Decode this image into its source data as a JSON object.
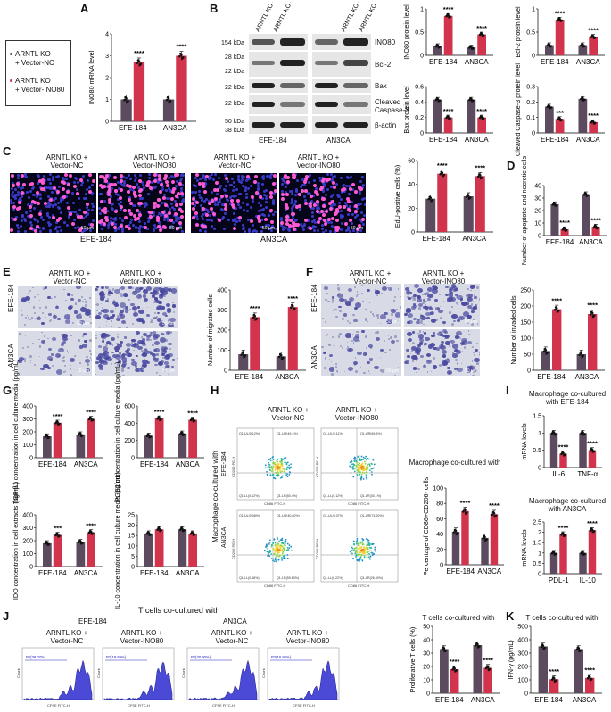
{
  "colors": {
    "nc": "#5c4a5e",
    "ino80": "#d2344e"
  },
  "legend": {
    "nc": "ARNTL KO + Vector-NC",
    "ino80": "ARNTL KO + Vector-INO80",
    "nc_l1": "ARNTL KO",
    "nc_l2": "+ Vector-NC",
    "ino_l1": "ARNTL KO",
    "ino_l2": "+ Vector-INO80"
  },
  "panels": {
    "A": "A",
    "B": "B",
    "C": "C",
    "D": "D",
    "E": "E",
    "F": "F",
    "G": "G",
    "H": "H",
    "I": "I",
    "J": "J",
    "K": "K"
  },
  "cells": {
    "efe": "EFE-184",
    "an3": "AN3CA"
  },
  "blot": {
    "col_labels": [
      "ARNTL KO + Vector-NC",
      "ARNTL KO + Vector-INO80",
      "ARNTL KO + Vector-NC",
      "ARNTL KO + Vector-INO80"
    ],
    "kda": [
      "154 kDa",
      "28 kDa",
      "22 kDa",
      "22 kDa",
      "22 kDa",
      "50 kDa",
      "38 kDa"
    ],
    "proteins": [
      "INO80",
      "Bcl-2",
      "Bax",
      "Cleaved",
      "Caspase-3",
      "β-actin"
    ]
  },
  "c": {
    "h1a": "ARNTL KO +",
    "h1b": "Vector-NC",
    "h2a": "ARNTL KO +",
    "h2b": "Vector-INO80",
    "scale": "50 μm"
  },
  "h": {
    "side": "Macrophage co-cultured with",
    "title": "Macrophage co-cultured with",
    "gates": [
      "Q1-UL(0.12%)",
      "Q1-UR(49.4%)",
      "Q1-LL(0.12%)",
      "Q1-LR(50.4%)",
      "Q1-UL(0.11%)",
      "Q1-UR(69.6%)",
      "Q1-LL(0.12%)",
      "Q1-LR(30.1%)",
      "Q1-UL(0.08%)",
      "Q1-UR(40.80%)",
      "Q1-LL(0.48%)",
      "Q1-LR(59.60%)",
      "Q1-UL(0.07%)",
      "Q1-UR(73.20%)",
      "Q1-LL(0.22%)",
      "Q1-LR(26.50%)"
    ],
    "xaxis": "CD86 FITC-H",
    "yaxis": "CD206 PE-H"
  },
  "i": {
    "t1a": "Macrophage co-cultured",
    "t1b": "with EFE-184",
    "t2a": "Macrophage co-cultured",
    "t2b": "with AN3CA"
  },
  "j": {
    "title": "T cells co-cultured with",
    "gates": [
      "P2(39.07%)",
      "P2(19.69%)",
      "P2(30.90%)",
      "P2(16.86%)"
    ],
    "xaxis": "CFSE FITC-H",
    "yaxis": "Count"
  },
  "k": {
    "title": "T cells co-cultured with"
  },
  "sig": {
    "s4": "****",
    "s3": "***"
  },
  "chart_data": [
    {
      "id": "A",
      "type": "bar",
      "categories": [
        "EFE-184",
        "AN3CA"
      ],
      "ylabel": "INO80 mRNA level",
      "ylim": [
        0,
        4
      ],
      "ticks": [
        0,
        1,
        2,
        3,
        4
      ],
      "series": [
        {
          "name": "ARNTL KO + Vector-NC",
          "values": [
            1.0,
            1.0
          ]
        },
        {
          "name": "ARNTL KO + Vector-INO80",
          "values": [
            2.7,
            3.0
          ]
        }
      ],
      "annotations": [
        "****",
        "****"
      ]
    },
    {
      "id": "B1",
      "type": "bar",
      "categories": [
        "EFE-184",
        "AN3CA"
      ],
      "ylabel": "INO80 protein level",
      "ylim": [
        0,
        1.0
      ],
      "ticks": [
        0,
        0.5,
        1.0
      ],
      "series": [
        {
          "name": "ARNTL KO + Vector-NC",
          "values": [
            0.2,
            0.17
          ]
        },
        {
          "name": "ARNTL KO + Vector-INO80",
          "values": [
            0.85,
            0.45
          ]
        }
      ],
      "annotations": [
        "****",
        "****"
      ]
    },
    {
      "id": "B2",
      "type": "bar",
      "categories": [
        "EFE-184",
        "AN3CA"
      ],
      "ylabel": "Bcl-2 protein level",
      "ylim": [
        0,
        1.0
      ],
      "ticks": [
        0,
        0.5,
        1.0
      ],
      "series": [
        {
          "name": "ARNTL KO + Vector-NC",
          "values": [
            0.22,
            0.22
          ]
        },
        {
          "name": "ARNTL KO + Vector-INO80",
          "values": [
            0.77,
            0.4
          ]
        }
      ],
      "annotations": [
        "****",
        "****"
      ]
    },
    {
      "id": "B3",
      "type": "bar",
      "categories": [
        "EFE-184",
        "AN3CA"
      ],
      "ylabel": "Bax protein level",
      "ylim": [
        0,
        0.6
      ],
      "ticks": [
        0,
        0.2,
        0.4,
        0.6
      ],
      "series": [
        {
          "name": "ARNTL KO + Vector-NC",
          "values": [
            0.43,
            0.43
          ]
        },
        {
          "name": "ARNTL KO + Vector-INO80",
          "values": [
            0.2,
            0.2
          ]
        }
      ],
      "annotations": [
        "****",
        "****"
      ]
    },
    {
      "id": "B4",
      "type": "bar",
      "categories": [
        "EFE-184",
        "AN3CA"
      ],
      "ylabel": "Cleaved Caspase-3 protein level",
      "ylim": [
        0,
        0.3
      ],
      "ticks": [
        0,
        0.1,
        0.2,
        0.3
      ],
      "series": [
        {
          "name": "ARNTL KO + Vector-NC",
          "values": [
            0.17,
            0.22
          ]
        },
        {
          "name": "ARNTL KO + Vector-INO80",
          "values": [
            0.09,
            0.07
          ]
        }
      ],
      "annotations": [
        "***",
        "****"
      ]
    },
    {
      "id": "C",
      "type": "bar",
      "categories": [
        "EFE-184",
        "AN3CA"
      ],
      "ylabel": "EdU-positive cells (%)",
      "ylim": [
        0,
        60
      ],
      "ticks": [
        0,
        20,
        40,
        60
      ],
      "series": [
        {
          "name": "ARNTL KO + Vector-NC",
          "values": [
            28,
            30
          ]
        },
        {
          "name": "ARNTL KO + Vector-INO80",
          "values": [
            49,
            47
          ]
        }
      ],
      "annotations": [
        "****",
        "****"
      ]
    },
    {
      "id": "D",
      "type": "bar",
      "categories": [
        "EFE-184",
        "AN3CA"
      ],
      "ylabel": "Number of apoptotic and necrotic cells",
      "ylim": [
        0,
        40
      ],
      "ticks": [
        0,
        10,
        20,
        30,
        40
      ],
      "series": [
        {
          "name": "ARNTL KO + Vector-NC",
          "values": [
            25,
            33
          ]
        },
        {
          "name": "ARNTL KO + Vector-INO80",
          "values": [
            5,
            7
          ]
        }
      ],
      "annotations": [
        "****",
        "****"
      ]
    },
    {
      "id": "E",
      "type": "bar",
      "categories": [
        "EFE-184",
        "AN3CA"
      ],
      "ylabel": "Number of migrated cells",
      "ylim": [
        0,
        400
      ],
      "ticks": [
        0,
        100,
        200,
        300,
        400
      ],
      "series": [
        {
          "name": "ARNTL KO + Vector-NC",
          "values": [
            80,
            70
          ]
        },
        {
          "name": "ARNTL KO + Vector-INO80",
          "values": [
            265,
            315
          ]
        }
      ],
      "annotations": [
        "****",
        "****"
      ]
    },
    {
      "id": "F",
      "type": "bar",
      "categories": [
        "EFE-184",
        "AN3CA"
      ],
      "ylabel": "Number of invaded cells",
      "ylim": [
        0,
        250
      ],
      "ticks": [
        0,
        50,
        100,
        150,
        200,
        250
      ],
      "series": [
        {
          "name": "ARNTL KO + Vector-NC",
          "values": [
            60,
            50
          ]
        },
        {
          "name": "ARNTL KO + Vector-INO80",
          "values": [
            190,
            175
          ]
        }
      ],
      "annotations": [
        "****",
        "****"
      ]
    },
    {
      "id": "G1",
      "type": "bar",
      "categories": [
        "EFE-184",
        "AN3CA"
      ],
      "ylabel": "TGF-β1 concentration in cell culture media (pg/mL)",
      "ylim": [
        0,
        400
      ],
      "ticks": [
        0,
        100,
        200,
        300,
        400
      ],
      "series": [
        {
          "name": "ARNTL KO + Vector-NC",
          "values": [
            165,
            180
          ]
        },
        {
          "name": "ARNTL KO + Vector-INO80",
          "values": [
            270,
            300
          ]
        }
      ],
      "annotations": [
        "****",
        "****"
      ]
    },
    {
      "id": "G2",
      "type": "bar",
      "categories": [
        "EFE-184",
        "AN3CA"
      ],
      "ylabel": "PGE2 concentration in cell culture media (pg/mL)",
      "ylim": [
        0,
        600
      ],
      "ticks": [
        0,
        200,
        400,
        600
      ],
      "series": [
        {
          "name": "ARNTL KO + Vector-NC",
          "values": [
            255,
            280
          ]
        },
        {
          "name": "ARNTL KO + Vector-INO80",
          "values": [
            455,
            440
          ]
        }
      ],
      "annotations": [
        "****",
        "****"
      ]
    },
    {
      "id": "G3",
      "type": "bar",
      "categories": [
        "EFE-184",
        "AN3CA"
      ],
      "ylabel": "IDO concentration in cell extracts (pg/mL)",
      "ylim": [
        0,
        400
      ],
      "ticks": [
        0,
        100,
        200,
        300,
        400
      ],
      "series": [
        {
          "name": "ARNTL KO + Vector-NC",
          "values": [
            180,
            190
          ]
        },
        {
          "name": "ARNTL KO + Vector-INO80",
          "values": [
            245,
            265
          ]
        }
      ],
      "annotations": [
        "***",
        "****"
      ]
    },
    {
      "id": "G4",
      "type": "bar",
      "categories": [
        "EFE-184",
        "AN3CA"
      ],
      "ylabel": "IL-10 concentration in cell culture media (pg/mL)",
      "ylim": [
        0,
        25
      ],
      "ticks": [
        0,
        5,
        10,
        15,
        20,
        25
      ],
      "series": [
        {
          "name": "ARNTL KO + Vector-NC",
          "values": [
            16,
            18
          ]
        },
        {
          "name": "ARNTL KO + Vector-INO80",
          "values": [
            18,
            16
          ]
        }
      ],
      "annotations": []
    },
    {
      "id": "H",
      "type": "bar",
      "categories": [
        "EFE-184",
        "AN3CA"
      ],
      "ylabel": "Percentage of CD86+CD206- cells",
      "ylim": [
        0,
        100
      ],
      "ticks": [
        0,
        20,
        40,
        60,
        80,
        100
      ],
      "series": [
        {
          "name": "ARNTL KO + Vector-NC",
          "values": [
            43,
            35
          ]
        },
        {
          "name": "ARNTL KO + Vector-INO80",
          "values": [
            70,
            66
          ]
        }
      ],
      "annotations": [
        "****",
        "****"
      ]
    },
    {
      "id": "I1",
      "type": "bar",
      "categories": [
        "IL-6",
        "TNF-α"
      ],
      "ylabel": "mRNA levels",
      "ylim": [
        0,
        1.5
      ],
      "ticks": [
        0,
        0.5,
        1.0,
        1.5
      ],
      "series": [
        {
          "name": "ARNTL KO + Vector-NC",
          "values": [
            1.0,
            1.0
          ]
        },
        {
          "name": "ARNTL KO + Vector-INO80",
          "values": [
            0.4,
            0.5
          ]
        }
      ],
      "annotations": [
        "****",
        "****"
      ]
    },
    {
      "id": "I2",
      "type": "bar",
      "categories": [
        "PDL-1",
        "IL-10"
      ],
      "ylabel": "mRNA levels",
      "ylim": [
        0,
        2.5
      ],
      "ticks": [
        0,
        0.5,
        1.0,
        1.5,
        2.0,
        2.5
      ],
      "series": [
        {
          "name": "ARNTL KO + Vector-NC",
          "values": [
            1.0,
            1.0
          ]
        },
        {
          "name": "ARNTL KO + Vector-INO80",
          "values": [
            1.9,
            2.1
          ]
        }
      ],
      "annotations": [
        "****",
        "****"
      ]
    },
    {
      "id": "J",
      "type": "bar",
      "categories": [
        "EFE-184",
        "AN3CA"
      ],
      "ylabel": "Proliferative T cells (%)",
      "ylim": [
        0,
        50
      ],
      "ticks": [
        0,
        10,
        20,
        30,
        40,
        50
      ],
      "series": [
        {
          "name": "ARNTL KO + Vector-NC",
          "values": [
            33,
            36
          ]
        },
        {
          "name": "ARNTL KO + Vector-INO80",
          "values": [
            18,
            19
          ]
        }
      ],
      "annotations": [
        "****",
        "****"
      ]
    },
    {
      "id": "K",
      "type": "bar",
      "categories": [
        "EFE-184",
        "AN3CA"
      ],
      "ylabel": "IFN-γ (pg/mL)",
      "ylim": [
        0,
        500
      ],
      "ticks": [
        0,
        100,
        200,
        300,
        400,
        500
      ],
      "series": [
        {
          "name": "ARNTL KO + Vector-NC",
          "values": [
            350,
            330
          ]
        },
        {
          "name": "ARNTL KO + Vector-INO80",
          "values": [
            105,
            115
          ]
        }
      ],
      "annotations": [
        "****",
        "****"
      ]
    }
  ]
}
